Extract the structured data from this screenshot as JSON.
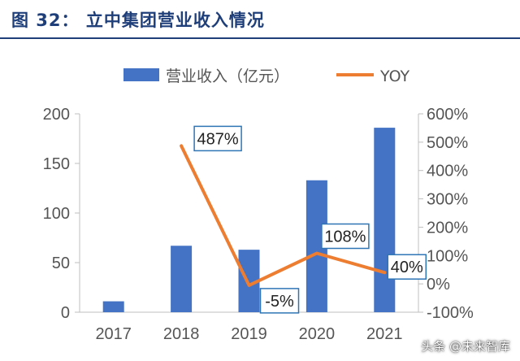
{
  "header": {
    "title": "图 32：  立中集团营业收入情况"
  },
  "watermark": "头条 @未来智库",
  "colors": {
    "bar": "#4472c4",
    "line": "#ed7d31",
    "title": "#1f3f7a"
  },
  "chart_data": {
    "type": "bar",
    "title": "",
    "categories": [
      "2017",
      "2018",
      "2019",
      "2020",
      "2021"
    ],
    "series": [
      {
        "name": "营业收入（亿元）",
        "type": "bar",
        "axis": "left",
        "values": [
          11,
          67,
          63,
          133,
          186
        ]
      },
      {
        "name": "YOY",
        "type": "line",
        "axis": "right",
        "values": [
          null,
          487,
          -5,
          108,
          40
        ],
        "labels": [
          "",
          "487%",
          "-5%",
          "108%",
          "40%"
        ]
      }
    ],
    "y_left": {
      "range": [
        0,
        200
      ],
      "ticks": [
        "0",
        "50",
        "100",
        "150",
        "200"
      ],
      "tick_values": [
        0,
        50,
        100,
        150,
        200
      ]
    },
    "y_right": {
      "range": [
        -100,
        600
      ],
      "ticks": [
        "-100%",
        "0%",
        "100%",
        "200%",
        "300%",
        "400%",
        "500%",
        "600%"
      ],
      "tick_values": [
        -100,
        0,
        100,
        200,
        300,
        400,
        500,
        600
      ]
    },
    "legend": "top",
    "grid": false
  }
}
